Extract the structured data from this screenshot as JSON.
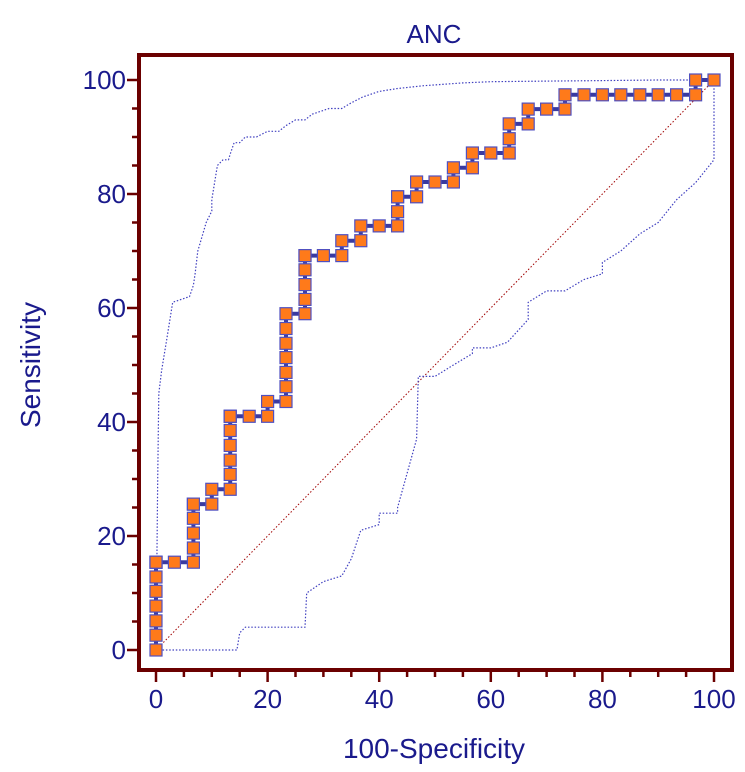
{
  "chart_data": {
    "type": "line",
    "title": "ANC",
    "xlabel": "100-Specificity",
    "ylabel": "Sensitivity",
    "xlim": [
      0,
      100
    ],
    "ylim": [
      0,
      100
    ],
    "x_ticks": [
      "0",
      "20",
      "40",
      "60",
      "80",
      "100"
    ],
    "y_ticks": [
      "0",
      "20",
      "40",
      "60",
      "80",
      "100"
    ],
    "grid": false,
    "colors": {
      "frame": "#6b0000",
      "text": "#1a1a8c",
      "roc_line": "#3a3aa0",
      "marker_fill": "#ff7a1a",
      "marker_edge": "#5050c0",
      "ci_line": "#4040c0",
      "diagonal": "#a00000"
    },
    "series": [
      {
        "role": "roc",
        "x": [
          0,
          0,
          0,
          0,
          0,
          0,
          0,
          0,
          0,
          3.3,
          6.7,
          6.7,
          6.7,
          6.7,
          6.7,
          6.7,
          10,
          10,
          13.3,
          13.3,
          13.3,
          13.3,
          13.3,
          13.3,
          13.3,
          13.3,
          16.7,
          20,
          20,
          23.3,
          23.3,
          23.3,
          23.3,
          23.3,
          23.3,
          23.3,
          26.7,
          26.7,
          26.7,
          26.7,
          26.7,
          26.7,
          30,
          33.3,
          33.3,
          36.7,
          36.7,
          40,
          43.3,
          43.3,
          43.3,
          43.3,
          46.7,
          46.7,
          50,
          53.3,
          53.3,
          56.7,
          56.7,
          60,
          63.3,
          63.3,
          63.3,
          66.7,
          66.7,
          70,
          73.3,
          73.3,
          76.7,
          80,
          83.3,
          86.7,
          90,
          93.3,
          96.7,
          96.7,
          100
        ],
        "y": [
          0,
          2.6,
          5.1,
          7.7,
          10.3,
          12.8,
          15.4,
          15.4,
          15.4,
          15.4,
          15.4,
          17.9,
          20.5,
          23.1,
          25.6,
          25.6,
          25.6,
          28.2,
          28.2,
          30.8,
          33.3,
          35.9,
          38.5,
          41,
          41,
          41,
          41,
          41,
          43.6,
          43.6,
          46.2,
          48.7,
          51.3,
          53.8,
          56.4,
          59,
          59,
          61.5,
          64.1,
          66.7,
          69.2,
          69.2,
          69.2,
          69.2,
          71.8,
          71.8,
          74.4,
          74.4,
          74.4,
          76.9,
          79.5,
          79.5,
          79.5,
          82.1,
          82.1,
          82.1,
          84.6,
          84.6,
          87.2,
          87.2,
          87.2,
          89.7,
          92.3,
          92.3,
          94.9,
          94.9,
          94.9,
          97.4,
          97.4,
          97.4,
          97.4,
          97.4,
          97.4,
          97.4,
          97.4,
          100,
          100
        ]
      },
      {
        "role": "ci-upper",
        "x": [
          0,
          0.3,
          0.5,
          1,
          2,
          3,
          6,
          6.7,
          7,
          7.5,
          9,
          10,
          10,
          11,
          12,
          13,
          13.3,
          14,
          15,
          16,
          18,
          20,
          22,
          23.3,
          25,
          26.7,
          28,
          31,
          33.3,
          35,
          37,
          40,
          43.3,
          48,
          55,
          60,
          70,
          80,
          90,
          100,
          100
        ],
        "y": [
          0,
          30,
          45,
          49,
          55,
          61,
          62,
          64,
          66,
          70,
          75,
          77,
          79,
          85,
          86,
          86,
          87,
          89,
          89,
          90,
          90,
          91,
          91,
          92,
          93,
          93,
          94,
          95,
          95,
          96,
          97,
          98,
          98.5,
          99,
          99.5,
          99.7,
          99.8,
          99.9,
          100,
          100,
          100
        ]
      },
      {
        "role": "ci-lower",
        "x": [
          0,
          13,
          14.5,
          15,
          16,
          20,
          23.3,
          26.7,
          27,
          30,
          33.3,
          35,
          36.7,
          36.7,
          40,
          40,
          43.3,
          43.3,
          46.7,
          46.7,
          47,
          50,
          53.3,
          56.7,
          56.7,
          60,
          60,
          63,
          66.7,
          66.7,
          70,
          73.3,
          73.3,
          76.7,
          80,
          80,
          83.3,
          86.7,
          90,
          93.3,
          96.7,
          100,
          100
        ],
        "y": [
          0,
          0,
          0,
          3,
          4,
          4,
          4,
          4,
          10,
          12,
          13,
          16,
          21,
          21,
          22,
          24,
          24,
          25,
          37,
          37,
          48,
          48,
          50,
          52,
          53,
          53,
          53,
          54,
          58,
          61,
          63,
          63,
          63,
          65,
          66,
          68,
          70,
          73,
          75,
          79,
          82,
          86,
          100
        ]
      },
      {
        "role": "diagonal",
        "x": [
          0,
          100
        ],
        "y": [
          0,
          100
        ]
      }
    ]
  }
}
